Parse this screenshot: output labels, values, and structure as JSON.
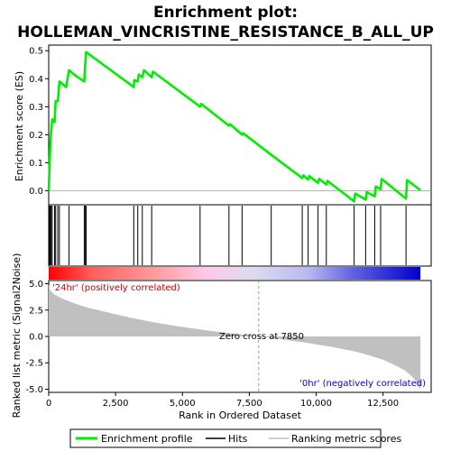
{
  "chart_data": {
    "type": "line",
    "title_lines": [
      "Enrichment plot:",
      "HOLLEMAN_VINCRISTINE_RESISTANCE_B_ALL_UP"
    ],
    "xlabel": "Rank in Ordered Dataset",
    "xlim": [
      0,
      14300
    ],
    "x_ticks": [
      0,
      2500,
      5000,
      7500,
      10000,
      12500
    ],
    "x_tick_labels": [
      "0",
      "2,500",
      "5,000",
      "7,500",
      "10,000",
      "12,500"
    ],
    "es_panel": {
      "ylabel": "Enrichment score (ES)",
      "ylim": [
        -0.05,
        0.52
      ],
      "y_ticks": [
        0.0,
        0.1,
        0.2,
        0.3,
        0.4,
        0.5
      ],
      "y_tick_labels": [
        "0.0",
        "0.1",
        "0.2",
        "0.3",
        "0.4",
        "0.5"
      ],
      "line_color": "#00ee00",
      "series": {
        "name": "Enrichment profile",
        "x": [
          0,
          30,
          60,
          90,
          130,
          220,
          260,
          340,
          400,
          650,
          760,
          1020,
          1330,
          1360,
          1400,
          3180,
          3200,
          3330,
          3370,
          3500,
          3560,
          3850,
          3900,
          5660,
          5700,
          6740,
          6780,
          7230,
          7270,
          8320,
          9480,
          9520,
          9700,
          9740,
          10070,
          10110,
          10380,
          10420,
          11420,
          11460,
          11850,
          11890,
          12190,
          12230,
          12410,
          12450,
          13360,
          13400,
          13900
        ],
        "y": [
          0.0,
          0.085,
          0.17,
          0.21,
          0.255,
          0.245,
          0.32,
          0.32,
          0.39,
          0.37,
          0.43,
          0.41,
          0.39,
          0.445,
          0.495,
          0.37,
          0.395,
          0.39,
          0.415,
          0.405,
          0.43,
          0.405,
          0.425,
          0.3,
          0.31,
          0.232,
          0.238,
          0.2,
          0.205,
          0.128,
          0.045,
          0.055,
          0.04,
          0.052,
          0.028,
          0.042,
          0.022,
          0.035,
          -0.038,
          -0.01,
          -0.032,
          -0.005,
          -0.02,
          0.015,
          0.005,
          0.042,
          -0.028,
          0.038,
          0.002
        ]
      }
    },
    "hits": [
      0,
      30,
      60,
      90,
      130,
      220,
      260,
      340,
      400,
      760,
      1330,
      1360,
      1400,
      3180,
      3330,
      3500,
      3850,
      5660,
      6740,
      7230,
      8320,
      9480,
      9700,
      10070,
      10380,
      11420,
      11850,
      12190,
      12410,
      13360
    ],
    "color_bar": {
      "positive_color": "#ff0000",
      "negative_color": "#0000cc",
      "neutral_color": "#dcdcf0"
    },
    "metric_panel": {
      "ylabel": "Ranked list metric (Signal2Noise)",
      "ylim": [
        -5.3,
        5.3
      ],
      "y_ticks": [
        -5.0,
        -2.5,
        0.0,
        2.5,
        5.0
      ],
      "y_tick_labels": [
        "-5.0",
        "-2.5",
        "0.0",
        "2.5",
        "5.0"
      ],
      "fill_color": "#c0c0c0",
      "series": {
        "name": "Ranking metric scores",
        "x": [
          0,
          50,
          200,
          500,
          1000,
          1500,
          2000,
          3000,
          4000,
          5000,
          6000,
          7000,
          7850,
          8500,
          9500,
          10500,
          11500,
          12000,
          12500,
          13000,
          13300,
          13500,
          13700,
          13800,
          13900
        ],
        "y": [
          4.9,
          4.4,
          4.0,
          3.6,
          3.1,
          2.7,
          2.4,
          1.8,
          1.3,
          0.9,
          0.55,
          0.25,
          0.0,
          -0.2,
          -0.55,
          -0.95,
          -1.45,
          -1.8,
          -2.2,
          -2.8,
          -3.2,
          -3.6,
          -4.1,
          -4.6,
          -5.0
        ]
      },
      "zero_cross_label": "Zero cross at 7850",
      "zero_cross": 7850,
      "pos_label": "'24hr' (positively correlated)",
      "neg_label": "'0hr' (negatively correlated)"
    },
    "legend": {
      "placement": "bottom",
      "items": [
        "Enrichment profile",
        "Hits",
        "Ranking metric scores"
      ]
    }
  }
}
